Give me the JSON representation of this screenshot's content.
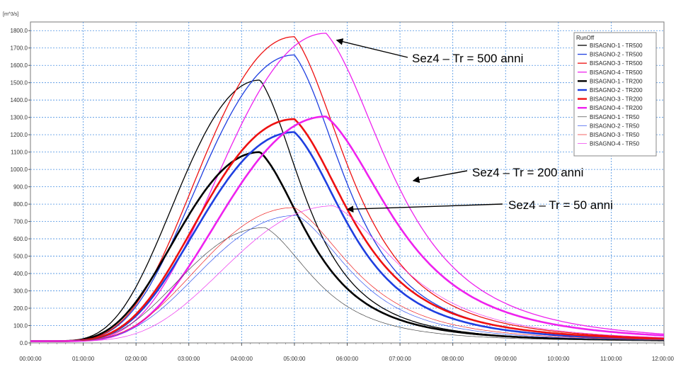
{
  "chart_data": {
    "type": "line",
    "y_unit_label": "[m^3/s]",
    "x_tick_labels": [
      "00:00:00",
      "01:00:00",
      "02:00:00",
      "03:00:00",
      "04:00:00",
      "05:00:00",
      "06:00:00",
      "07:00:00",
      "08:00:00",
      "09:00:00",
      "10:00:00",
      "11:00:00",
      "12:00:00"
    ],
    "y_tick_labels": [
      "0.0",
      "100.0",
      "200.0",
      "300.0",
      "400.0",
      "500.0",
      "600.0",
      "700.0",
      "800.0",
      "900.0",
      "1000.0",
      "1100.0",
      "1200.0",
      "1300.0",
      "1400.0",
      "1500.0",
      "1600.0",
      "1700.0",
      "1800.0"
    ],
    "xlim": [
      0,
      12
    ],
    "ylim": [
      0,
      1850
    ],
    "grid": true,
    "legend_placement": "top-right",
    "legend_title": "RunOff",
    "series": [
      {
        "name": "BISAGNO-1 - TR500",
        "color": "#000000",
        "weight": "thin",
        "peak": 1515,
        "peak_time": 4.35,
        "base": 10,
        "rise_width": 1.05,
        "fall_width": 1.25
      },
      {
        "name": "BISAGNO-2 - TR500",
        "color": "#1f3fe0",
        "weight": "thin",
        "peak": 1660,
        "peak_time": 5.0,
        "base": 10,
        "rise_width": 1.2,
        "fall_width": 1.45
      },
      {
        "name": "BISAGNO-3 - TR500",
        "color": "#ee1111",
        "weight": "thin",
        "peak": 1765,
        "peak_time": 5.0,
        "base": 10,
        "rise_width": 1.2,
        "fall_width": 1.55
      },
      {
        "name": "BISAGNO-4 - TR500",
        "color": "#ee22ee",
        "weight": "thin",
        "peak": 1785,
        "peak_time": 5.6,
        "base": 10,
        "rise_width": 1.3,
        "fall_width": 1.8
      },
      {
        "name": "BISAGNO-1 - TR200",
        "color": "#000000",
        "weight": "thick",
        "peak": 1100,
        "peak_time": 4.35,
        "base": 10,
        "rise_width": 1.05,
        "fall_width": 1.35
      },
      {
        "name": "BISAGNO-2 - TR200",
        "color": "#1f3fe0",
        "weight": "thick",
        "peak": 1215,
        "peak_time": 5.0,
        "base": 10,
        "rise_width": 1.2,
        "fall_width": 1.5
      },
      {
        "name": "BISAGNO-3 - TR200",
        "color": "#ee1111",
        "weight": "thick",
        "peak": 1290,
        "peak_time": 5.0,
        "base": 10,
        "rise_width": 1.2,
        "fall_width": 1.6
      },
      {
        "name": "BISAGNO-4 - TR200",
        "color": "#ee22ee",
        "weight": "thick",
        "peak": 1305,
        "peak_time": 5.6,
        "base": 10,
        "rise_width": 1.3,
        "fall_width": 1.85
      },
      {
        "name": "BISAGNO-1 - TR50",
        "color": "#444444",
        "weight": "hair",
        "peak": 665,
        "peak_time": 4.45,
        "base": 10,
        "rise_width": 1.05,
        "fall_width": 1.35
      },
      {
        "name": "BISAGNO-2 - TR50",
        "color": "#3355ee",
        "weight": "hair",
        "peak": 735,
        "peak_time": 5.05,
        "base": 10,
        "rise_width": 1.2,
        "fall_width": 1.5
      },
      {
        "name": "BISAGNO-3 - TR50",
        "color": "#ee2222",
        "weight": "hair",
        "peak": 780,
        "peak_time": 5.0,
        "base": 10,
        "rise_width": 1.2,
        "fall_width": 1.6
      },
      {
        "name": "BISAGNO-4 - TR50",
        "color": "#ee33ee",
        "weight": "hair",
        "peak": 790,
        "peak_time": 5.75,
        "base": 10,
        "rise_width": 1.3,
        "fall_width": 1.85
      }
    ],
    "annotations": [
      {
        "text": "Sez4 – Tr = 500 anni",
        "target_time": 5.8,
        "target_value": 1745
      },
      {
        "text": "Sez4 – Tr = 200 anni",
        "target_time": 7.25,
        "target_value": 935
      },
      {
        "text": "Sez4 – Tr = 50 anni",
        "target_time": 6.0,
        "target_value": 770
      }
    ]
  }
}
